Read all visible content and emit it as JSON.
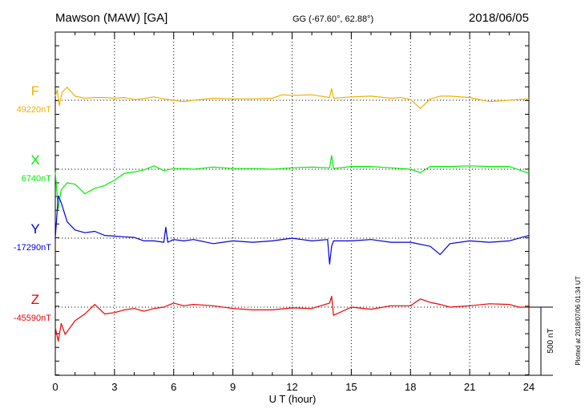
{
  "header": {
    "station": "Mawson (MAW)  [GA]",
    "coords": "GG (-67.60°,  62.88°)",
    "date": "2018/06/05"
  },
  "footer": {
    "plotted": "Plotted at 2018/07/06 01:34 UT"
  },
  "colors": {
    "F": "#f0b000",
    "X": "#00ee00",
    "Y": "#0000dd",
    "Z": "#ee0000"
  },
  "chart_data": {
    "type": "line",
    "title": "Mawson (MAW)  [GA]",
    "xlabel": "U T (hour)",
    "ylabel": "",
    "xlim": [
      0,
      24
    ],
    "xticks": [
      "0",
      "3",
      "6",
      "9",
      "12",
      "15",
      "18",
      "21",
      "24"
    ],
    "grid": "dotted vertical lines every 3 hours",
    "scale_bar": "500 nT",
    "series": [
      {
        "name": "F",
        "baseline_label": "49220nT",
        "color": "#f0b000",
        "x": [
          0,
          0.1,
          0.2,
          0.35,
          0.6,
          1,
          1.5,
          2,
          2.5,
          3,
          3.5,
          4,
          4.5,
          5,
          5.5,
          6,
          6.5,
          7,
          8,
          9,
          10,
          11,
          11.5,
          12,
          13,
          13.9,
          14,
          14.1,
          15,
          16,
          17,
          17.5,
          18,
          18.5,
          19,
          19.5,
          20,
          21,
          22,
          23,
          24
        ],
        "values": [
          30,
          75,
          -40,
          60,
          95,
          30,
          15,
          20,
          20,
          15,
          20,
          5,
          12,
          25,
          10,
          0,
          -10,
          0,
          15,
          10,
          10,
          15,
          40,
          35,
          40,
          20,
          85,
          15,
          25,
          30,
          15,
          20,
          5,
          -60,
          10,
          30,
          30,
          20,
          -10,
          0,
          10
        ]
      },
      {
        "name": "X",
        "baseline_label": "6740nT",
        "color": "#00ee00",
        "x": [
          0,
          0.15,
          0.3,
          0.6,
          1,
          1.5,
          2,
          2.5,
          3,
          3.5,
          4,
          4.5,
          5,
          5.5,
          6,
          6.5,
          7,
          8,
          9,
          10,
          11,
          12,
          13,
          13.9,
          14,
          14.1,
          15,
          16,
          17,
          18,
          18.5,
          19,
          20,
          21,
          22,
          23,
          24
        ],
        "values": [
          -20,
          -290,
          -150,
          -100,
          -110,
          -180,
          -140,
          -120,
          -80,
          -30,
          -20,
          -5,
          25,
          -10,
          5,
          5,
          0,
          15,
          5,
          5,
          0,
          10,
          15,
          10,
          100,
          5,
          20,
          20,
          10,
          0,
          -25,
          20,
          20,
          25,
          20,
          20,
          -30
        ]
      },
      {
        "name": "Y",
        "baseline_label": "-17290nT",
        "color": "#0000dd",
        "x": [
          0,
          0.15,
          0.3,
          0.6,
          1,
          1.5,
          2,
          2.5,
          3,
          3.5,
          4,
          4.5,
          5,
          5.5,
          5.6,
          5.7,
          6,
          6.5,
          7,
          8,
          9,
          10,
          11,
          12,
          13,
          13.8,
          13.9,
          14,
          14.1,
          15,
          16,
          17,
          18,
          19,
          19.5,
          20,
          21,
          22,
          23,
          24
        ],
        "values": [
          0,
          310,
          260,
          120,
          60,
          40,
          50,
          20,
          15,
          10,
          5,
          -20,
          -20,
          -30,
          80,
          -30,
          -10,
          -20,
          -10,
          -40,
          -20,
          -30,
          -20,
          0,
          -20,
          -10,
          -190,
          -60,
          -20,
          -20,
          -10,
          -30,
          -30,
          -60,
          -120,
          -40,
          -20,
          -30,
          -20,
          20
        ]
      },
      {
        "name": "Z",
        "baseline_label": "-45590nT",
        "color": "#ee0000",
        "x": [
          0,
          0.15,
          0.3,
          0.5,
          0.7,
          1,
          1.5,
          2,
          2.5,
          3,
          3.5,
          4,
          4.5,
          5,
          5.5,
          6,
          6.5,
          7,
          8,
          9,
          10,
          11,
          12,
          13,
          13.9,
          14,
          14.1,
          15,
          16,
          17,
          18,
          18.5,
          19,
          19.5,
          20,
          21,
          22,
          23,
          23.5,
          24
        ],
        "values": [
          -150,
          -250,
          -120,
          -200,
          -160,
          -100,
          -50,
          20,
          -50,
          -40,
          -20,
          -10,
          -30,
          -10,
          0,
          30,
          10,
          20,
          10,
          -10,
          -20,
          -20,
          -5,
          -10,
          30,
          80,
          -60,
          0,
          -15,
          10,
          10,
          60,
          35,
          20,
          0,
          10,
          25,
          20,
          0,
          0
        ]
      }
    ]
  }
}
